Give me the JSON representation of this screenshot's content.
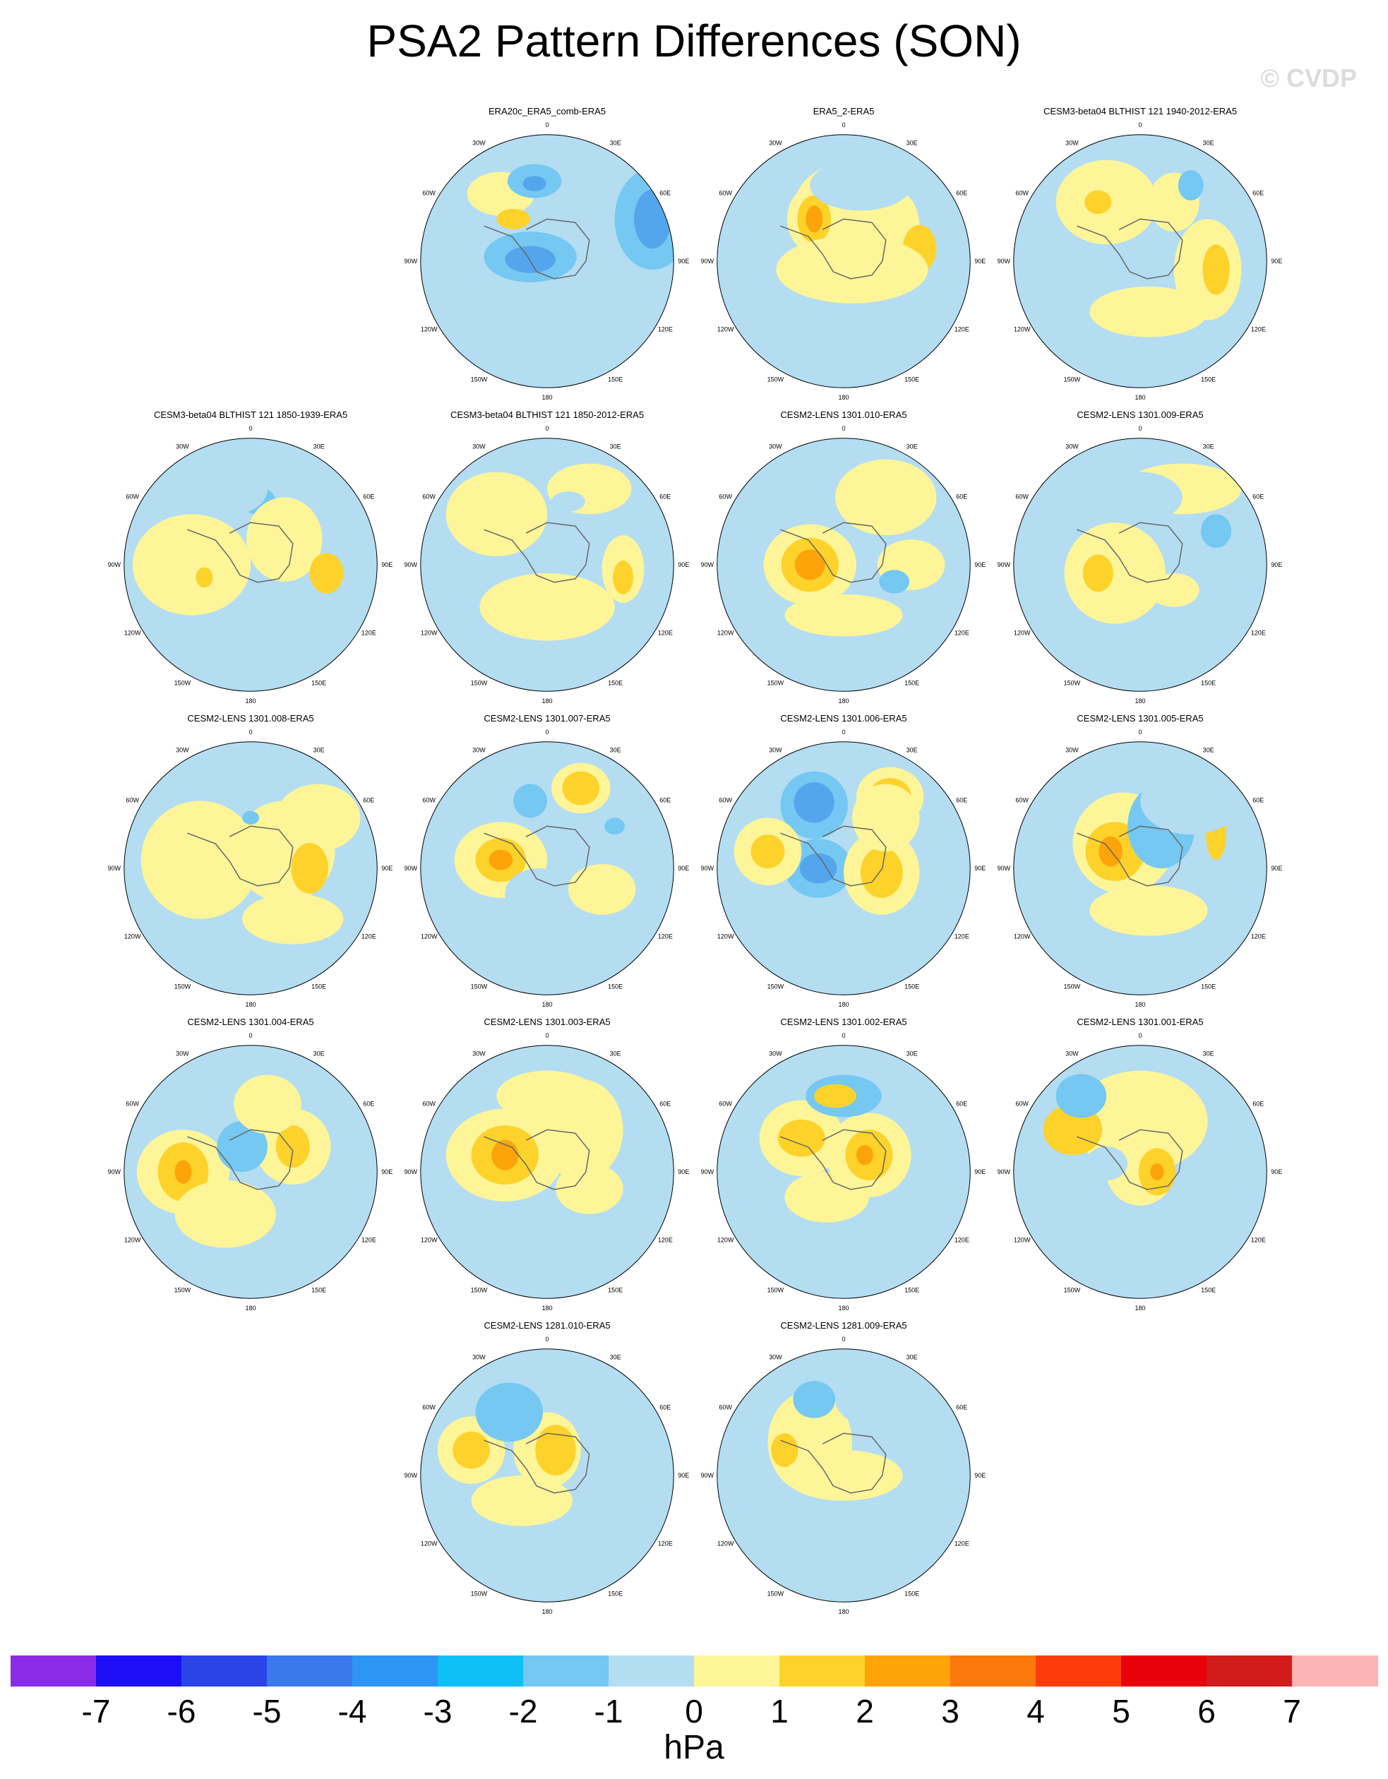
{
  "title": "PSA2 Pattern Differences (SON)",
  "watermark": "© CVDP",
  "colors": {
    "blue3": "#54a6ec",
    "blue2": "#74c8f2",
    "blue1": "#b4ddf2",
    "yellow0": "#fdf598",
    "yellow1": "#fdd22a",
    "orange2": "#fca40a",
    "coast": "#666666"
  },
  "lon_labels": [
    "0",
    "30E",
    "60E",
    "90E",
    "120E",
    "150E",
    "180",
    "150W",
    "120W",
    "90W",
    "60W",
    "30W"
  ],
  "panels": [
    {
      "title": "ERA20c_ERA5_comb-ERA5"
    },
    {
      "title": "ERA5_2-ERA5"
    },
    {
      "title": "CESM3-beta04 BLTHIST 121 1940-2012-ERA5"
    },
    {
      "title": "CESM3-beta04 BLTHIST 121 1850-1939-ERA5"
    },
    {
      "title": "CESM3-beta04 BLTHIST 121 1850-2012-ERA5"
    },
    {
      "title": "CESM2-LENS 1301.010-ERA5"
    },
    {
      "title": "CESM2-LENS 1301.009-ERA5"
    },
    {
      "title": "CESM2-LENS 1301.008-ERA5"
    },
    {
      "title": "CESM2-LENS 1301.007-ERA5"
    },
    {
      "title": "CESM2-LENS 1301.006-ERA5"
    },
    {
      "title": "CESM2-LENS 1301.005-ERA5"
    },
    {
      "title": "CESM2-LENS 1301.004-ERA5"
    },
    {
      "title": "CESM2-LENS 1301.003-ERA5"
    },
    {
      "title": "CESM2-LENS 1301.002-ERA5"
    },
    {
      "title": "CESM2-LENS 1301.001-ERA5"
    },
    {
      "title": "CESM2-LENS 1281.010-ERA5"
    },
    {
      "title": "CESM2-LENS 1281.009-ERA5"
    }
  ],
  "colorbar": {
    "units": "hPa",
    "ticks": [
      "-7",
      "-6",
      "-5",
      "-4",
      "-3",
      "-2",
      "-1",
      "0",
      "1",
      "2",
      "3",
      "4",
      "5",
      "6",
      "7"
    ],
    "colors": [
      "#8a2be8",
      "#1c0ef5",
      "#2a44e8",
      "#3a78ee",
      "#2d96f5",
      "#0ec0f5",
      "#74c8f2",
      "#b4ddf2",
      "#fdf598",
      "#fdd22a",
      "#fca40a",
      "#fc780a",
      "#fc3c0a",
      "#e8000a",
      "#d21c1c",
      "#fcb4b4"
    ]
  }
}
